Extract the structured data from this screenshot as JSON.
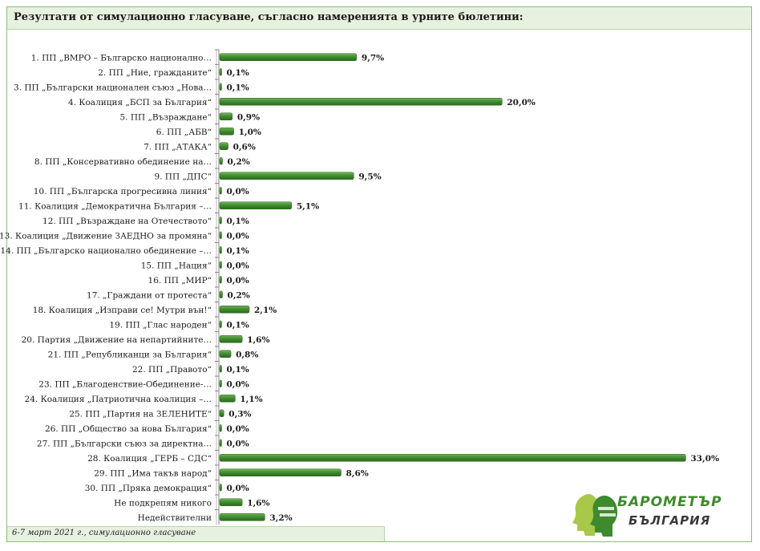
{
  "header": {
    "title": "Резултати от симулационно гласуване, съгласно намеренията в урните бюлетини:"
  },
  "footer": {
    "note": "6-7 март 2021 г., симулационно гласуване"
  },
  "logo": {
    "line1": "БАРОМЕТЪР",
    "line2": "БЪЛГАРИЯ",
    "icon": "silhouette-faces-icon"
  },
  "colors": {
    "bar": "#3f8a2e",
    "bar_light": "#6fb35a",
    "frame": "#8bbf7a",
    "panel": "#e7f1df"
  },
  "chart_data": {
    "type": "bar",
    "orientation": "horizontal",
    "categories": [
      "1. ПП „ВМРО – Българско национално…",
      "2. ПП „Ние, гражданите“",
      "3. ПП „Български национален съюз „Нова…",
      "4. Коалиция „БСП за България“",
      "5. ПП „Възраждане“",
      "6. ПП „АБВ“",
      "7. ПП „АТАКА“",
      "8. ПП „Консервативно обединение на…",
      "9. ПП „ДПС“",
      "10. ПП „Българска прогресивна линия“",
      "11. Коалиция „Демократична България –…",
      "12. ПП „Възраждане на Отечеството“",
      "13. Коалиция „Движение ЗАЕДНО за промяна“",
      "14. ПП „Българско национално обединение –…",
      "15. ПП „Нация“",
      "16. ПП „МИР“",
      "17. „Граждани от протеста“",
      "18. Коалиция „Изправи се! Мутри вън!“",
      "19. ПП „Глас народен“",
      "20. Партия „Движение на непартийните…",
      "21. ПП „Републиканци за България“",
      "22. ПП „Правото“",
      "23. ПП „Благоденствие-Обединение-…",
      "24. Коалиция „Патриотична коалиция –…",
      "25. ПП „Партия на ЗЕЛЕНИТЕ“",
      "26. ПП „Общество за нова България“",
      "27. ПП „Български съюз за директна…",
      "28. Коалиция „ГЕРБ – СДС“",
      "29. ПП „Има такъв народ“",
      "30. ПП „Пряка демокрация“",
      "Не подкрепям никого",
      "Недействителни"
    ],
    "values": [
      9.7,
      0.1,
      0.1,
      20.0,
      0.9,
      1.0,
      0.6,
      0.2,
      9.5,
      0.0,
      5.1,
      0.1,
      0.0,
      0.1,
      0.0,
      0.0,
      0.2,
      2.1,
      0.1,
      1.6,
      0.8,
      0.1,
      0.0,
      1.1,
      0.3,
      0.0,
      0.0,
      33.0,
      8.6,
      0.0,
      1.6,
      3.2
    ],
    "value_labels": [
      "9,7%",
      "0,1%",
      "0,1%",
      "20,0%",
      "0,9%",
      "1,0%",
      "0,6%",
      "0,2%",
      "9,5%",
      "0,0%",
      "5,1%",
      "0,1%",
      "0,0%",
      "0,1%",
      "0,0%",
      "0,0%",
      "0,2%",
      "2,1%",
      "0,1%",
      "1,6%",
      "0,8%",
      "0,1%",
      "0,0%",
      "1,1%",
      "0,3%",
      "0,0%",
      "0,0%",
      "33,0%",
      "8,6%",
      "0,0%",
      "1,6%",
      "3,2%"
    ],
    "xlim": [
      0,
      34
    ],
    "grid": false,
    "legend": "none",
    "title": "",
    "xlabel": "",
    "ylabel": ""
  }
}
